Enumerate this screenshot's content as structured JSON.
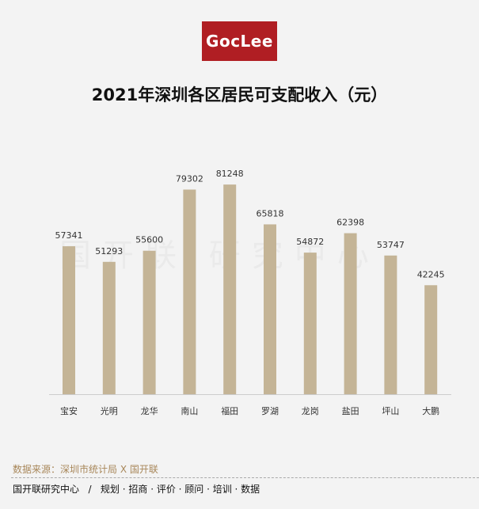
{
  "logo": "GocLee",
  "watermark": "国开联 研究中心",
  "source": "数据来源：深圳市统计局 X 国开联",
  "footer": "国开联研究中心   /   规划 · 招商 · 评价 · 顾问 · 培训 · 数据",
  "chart_data": {
    "type": "bar",
    "title": "2021年深圳各区居民可支配收入（元）",
    "categories": [
      "宝安",
      "光明",
      "龙华",
      "南山",
      "福田",
      "罗湖",
      "龙岗",
      "盐田",
      "坪山",
      "大鹏"
    ],
    "values": [
      57341,
      51293,
      55600,
      79302,
      81248,
      65818,
      54872,
      62398,
      53747,
      42245
    ],
    "ylim": [
      0,
      100000
    ],
    "grid": false,
    "bar_color": "#c4b496"
  }
}
